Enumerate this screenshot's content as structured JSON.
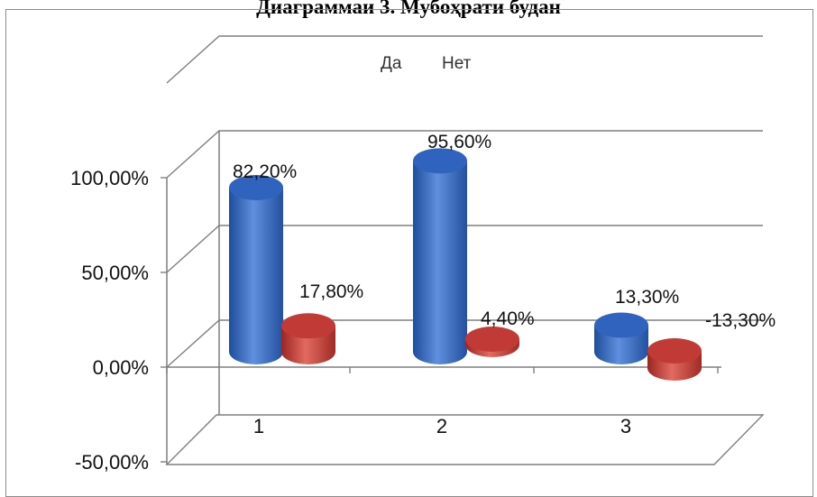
{
  "page_title": "Диаграммаи 3. Мубоҳрати будан",
  "chart_data": {
    "type": "bar",
    "style": "3d-cylinder",
    "title": "",
    "categories": [
      "1",
      "2",
      "3"
    ],
    "series": [
      {
        "name": "Да",
        "color": "#3a6ec6",
        "values": [
          82.2,
          95.6,
          13.3
        ],
        "labels": [
          "82,20%",
          "95,60%",
          "13,30%"
        ]
      },
      {
        "name": "Нет",
        "color": "#c9403a",
        "values": [
          17.8,
          4.4,
          -13.3
        ],
        "labels": [
          "17,80%",
          "4,40%",
          "-13,30%"
        ]
      }
    ],
    "y_ticks": [
      "-50,00%",
      "0,00%",
      "50,00%",
      "100,00%"
    ],
    "ylim": [
      -50,
      100
    ],
    "legend_position": "top",
    "grid": true
  }
}
